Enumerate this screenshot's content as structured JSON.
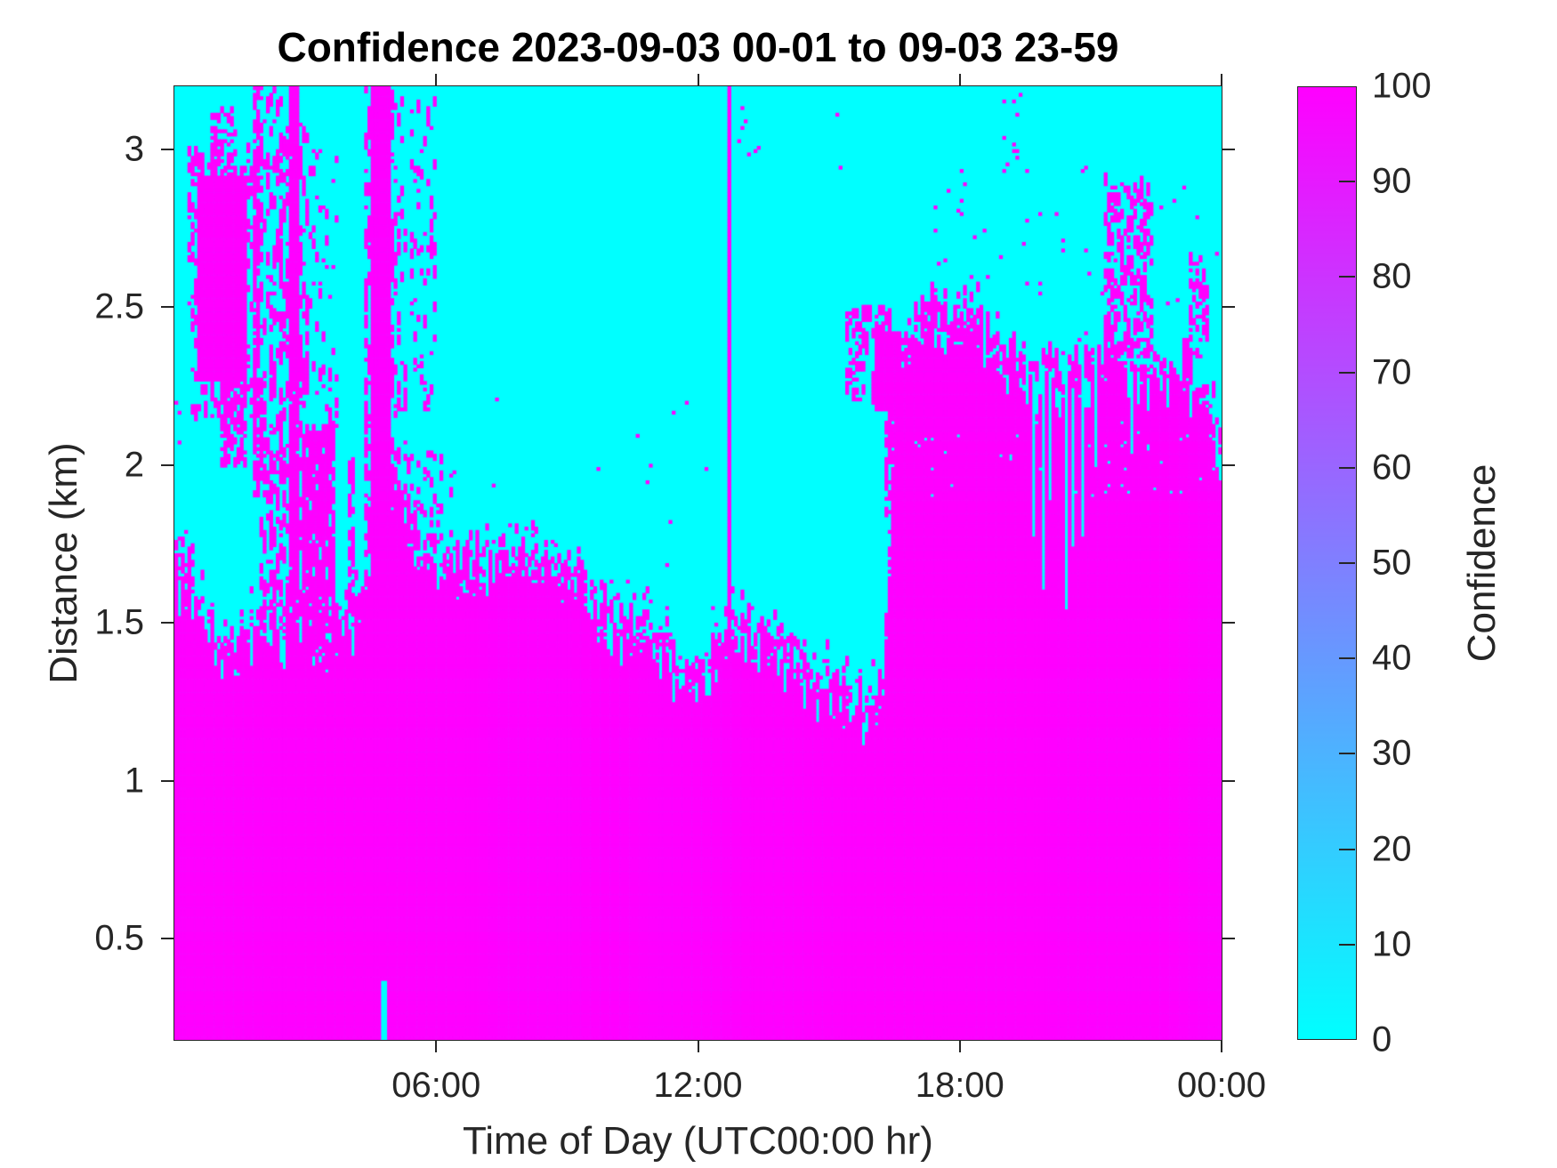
{
  "chart_data": {
    "type": "heatmap",
    "title": "Confidence 2023-09-03 00-01 to 09-03 23-59",
    "xlabel": "Time of Day (UTC00:00 hr)",
    "ylabel": "Distance (km)",
    "xlim_hours": [
      0,
      24
    ],
    "ylim_km": [
      0.18,
      3.2
    ],
    "grid_on": false,
    "x_ticks": {
      "hours": [
        6,
        12,
        18,
        24
      ],
      "labels": [
        "06:00",
        "12:00",
        "18:00",
        "00:00"
      ]
    },
    "y_ticks": {
      "values": [
        0.5,
        1,
        1.5,
        2,
        2.5,
        3
      ],
      "labels": [
        "0.5",
        "1",
        "1.5",
        "2",
        "2.5",
        "3"
      ]
    },
    "colorbar": {
      "label": "Confidence",
      "clim": [
        0,
        100
      ],
      "tick_values": [
        0,
        10,
        20,
        30,
        40,
        50,
        60,
        70,
        80,
        90,
        100
      ],
      "tick_labels": [
        "0",
        "10",
        "20",
        "30",
        "40",
        "50",
        "60",
        "70",
        "80",
        "90",
        "100"
      ],
      "colormap": "cool",
      "color_low": "#00ffff",
      "color_high": "#ff00ff"
    },
    "value_semantics": "binary field: 100 = high-confidence (magenta) layer below boundary, 0 = low confidence (cyan) above",
    "grid": {
      "cols": 320,
      "rows": 288,
      "seed": 7
    },
    "boundary_top_km": {
      "t_step_hours": 0.25,
      "km": [
        1.62,
        1.6,
        1.55,
        1.47,
        1.4,
        1.38,
        1.4,
        1.46,
        1.52,
        1.47,
        1.45,
        1.58,
        1.5,
        1.44,
        1.4,
        1.45,
        1.5,
        1.53,
        1.58,
        1.62,
        1.9,
        1.86,
        1.72,
        1.68,
        1.67,
        1.64,
        1.66,
        1.64,
        1.66,
        1.65,
        1.7,
        1.68,
        1.66,
        1.66,
        1.63,
        1.62,
        1.62,
        1.66,
        1.55,
        1.49,
        1.47,
        1.45,
        1.45,
        1.46,
        1.44,
        1.38,
        1.33,
        1.32,
        1.33,
        1.36,
        1.38,
        1.45,
        1.47,
        1.44,
        1.41,
        1.4,
        1.38,
        1.32,
        1.3,
        1.28,
        1.27,
        1.25,
        1.22,
        1.21,
        1.22,
        1.28,
        2.05,
        2.36,
        2.42,
        2.48,
        2.45,
        2.38,
        2.42,
        2.46,
        2.4,
        2.34,
        2.3,
        2.28,
        2.26,
        2.24,
        2.28,
        2.26,
        2.24,
        2.26,
        2.28,
        2.3,
        2.34,
        2.32,
        2.3,
        2.28,
        2.3,
        2.26,
        2.24,
        2.28,
        2.24,
        2.15,
        2.02
      ]
    },
    "noise": {
      "spike_p": 0.32,
      "spike_max_km": 0.13,
      "notch_p": 0.22,
      "notch_max_km": 0.09,
      "near_band_km": 0.06,
      "near_p": 0.3,
      "far_band_km": 0.14,
      "far_p": 0.07,
      "below_band_km": 0.05,
      "below_p": 0.08,
      "col_jitter_km": 0.05
    },
    "features": [
      {
        "kind": "dots",
        "t": [
          0,
          0.15
        ],
        "d": [
          1.95,
          2.2
        ],
        "p": 0.12
      },
      {
        "kind": "speckle",
        "t": [
          0,
          0.4
        ],
        "d": [
          1.6,
          1.8
        ],
        "p": 0.25,
        "run": 2
      },
      {
        "kind": "solid",
        "t": [
          0.55,
          1.6
        ],
        "d": [
          2.28,
          2.92
        ]
      },
      {
        "kind": "speckle",
        "t": [
          0.35,
          1.95
        ],
        "d": [
          2.15,
          3.0
        ],
        "p": 0.2,
        "run": 3
      },
      {
        "kind": "speckle",
        "t": [
          0.85,
          1.4
        ],
        "d": [
          2.88,
          3.14
        ],
        "p": 0.3,
        "run": 2
      },
      {
        "kind": "speckle",
        "t": [
          1.1,
          1.6
        ],
        "d": [
          2.0,
          2.3
        ],
        "p": 0.45,
        "run": 3
      },
      {
        "kind": "dashcol",
        "t": [
          1.82,
          1.94
        ],
        "d": [
          1.9,
          3.2
        ],
        "p": 0.5,
        "run": 4
      },
      {
        "kind": "speckle",
        "t": [
          1.95,
          2.45
        ],
        "d": [
          1.55,
          3.2
        ],
        "p": 0.15,
        "run": 5
      },
      {
        "kind": "dashcol",
        "t": [
          2.68,
          2.84
        ],
        "d": [
          1.55,
          3.2
        ],
        "p": 0.7,
        "run": 6
      },
      {
        "kind": "speckle",
        "t": [
          2.45,
          3.0
        ],
        "d": [
          1.5,
          3.1
        ],
        "p": 0.17,
        "run": 5
      },
      {
        "kind": "speckle",
        "t": [
          2.95,
          3.65
        ],
        "d": [
          1.4,
          2.1
        ],
        "p": 0.42,
        "run": 6
      },
      {
        "kind": "speckle",
        "t": [
          3.0,
          3.7
        ],
        "d": [
          2.1,
          3.0
        ],
        "p": 0.05,
        "run": 3
      },
      {
        "kind": "dashcol",
        "t": [
          4.0,
          4.1
        ],
        "d": [
          1.5,
          2.0
        ],
        "p": 0.5,
        "run": 3
      },
      {
        "kind": "speckle",
        "t": [
          4.42,
          5.0
        ],
        "d": [
          1.5,
          3.2
        ],
        "p": 0.2,
        "run": 6
      },
      {
        "kind": "solid",
        "t": [
          4.5,
          4.68
        ],
        "d": [
          1.55,
          3.2
        ]
      },
      {
        "kind": "solid",
        "t": [
          4.73,
          4.92
        ],
        "d": [
          1.42,
          3.2
        ]
      },
      {
        "kind": "cyan_rect",
        "t": [
          4.8,
          4.87
        ],
        "d": [
          0.18,
          0.37
        ]
      },
      {
        "kind": "speckle",
        "t": [
          5.0,
          5.3
        ],
        "d": [
          1.9,
          3.2
        ],
        "p": 0.1,
        "run": 4
      },
      {
        "kind": "speckle",
        "t": [
          5.45,
          5.95
        ],
        "d": [
          2.1,
          3.15
        ],
        "p": 0.08,
        "run": 4
      },
      {
        "kind": "speckle",
        "t": [
          5.3,
          6.3
        ],
        "d": [
          1.7,
          2.05
        ],
        "p": 0.12,
        "run": 3
      },
      {
        "kind": "dots",
        "t": [
          6.0,
          12.6
        ],
        "d": [
          1.55,
          2.3
        ],
        "p": 0.004
      },
      {
        "kind": "vline",
        "t": 12.68,
        "d": [
          1.43,
          3.2
        ]
      },
      {
        "kind": "dots",
        "t": [
          12.9,
          13.4
        ],
        "d": [
          2.95,
          3.15
        ],
        "p": 0.06
      },
      {
        "kind": "dots",
        "t": [
          14.9,
          15.3
        ],
        "d": [
          2.95,
          3.12
        ],
        "p": 0.05
      },
      {
        "kind": "speckle",
        "t": [
          15.4,
          16.45
        ],
        "d": [
          2.2,
          2.5
        ],
        "p": 0.28,
        "run": 3
      },
      {
        "kind": "solid",
        "t": [
          16.05,
          16.6
        ],
        "d": [
          2.18,
          2.42
        ]
      },
      {
        "kind": "speckle",
        "t": [
          16.3,
          16.68
        ],
        "d": [
          1.85,
          2.2
        ],
        "p": 0.45,
        "run": 4
      },
      {
        "kind": "speckle",
        "t": [
          21.3,
          22.35
        ],
        "d": [
          2.35,
          2.9
        ],
        "p": 0.25,
        "run": 4
      },
      {
        "kind": "dots",
        "t": [
          17.0,
          24.0
        ],
        "d": [
          2.5,
          2.95
        ],
        "p": 0.01
      },
      {
        "kind": "dots",
        "t": [
          18.95,
          19.4
        ],
        "d": [
          2.95,
          3.18
        ],
        "p": 0.08
      },
      {
        "kind": "speckle",
        "t": [
          23.25,
          23.65
        ],
        "d": [
          2.4,
          2.65
        ],
        "p": 0.28,
        "run": 3
      },
      {
        "kind": "cyanline",
        "t": 19.72,
        "d": [
          1.78,
          2.3
        ]
      },
      {
        "kind": "cyanline",
        "t": 19.92,
        "d": [
          1.62,
          2.32
        ]
      },
      {
        "kind": "cyanline",
        "t": 20.05,
        "d": [
          1.9,
          2.3
        ]
      },
      {
        "kind": "cyanline",
        "t": 20.42,
        "d": [
          1.55,
          2.28
        ]
      },
      {
        "kind": "cyanline",
        "t": 20.58,
        "d": [
          1.75,
          2.25
        ]
      },
      {
        "kind": "cyanline",
        "t": 20.8,
        "d": [
          1.78,
          2.28
        ]
      },
      {
        "kind": "cyanline",
        "t": 21.12,
        "d": [
          2.0,
          2.32
        ]
      },
      {
        "kind": "cyanline",
        "t": 21.95,
        "d": [
          2.05,
          2.3
        ]
      },
      {
        "kind": "dots",
        "t": [
          16.7,
          24.0
        ],
        "d": [
          1.9,
          2.15
        ],
        "p": 0.015,
        "v": 0
      }
    ]
  }
}
